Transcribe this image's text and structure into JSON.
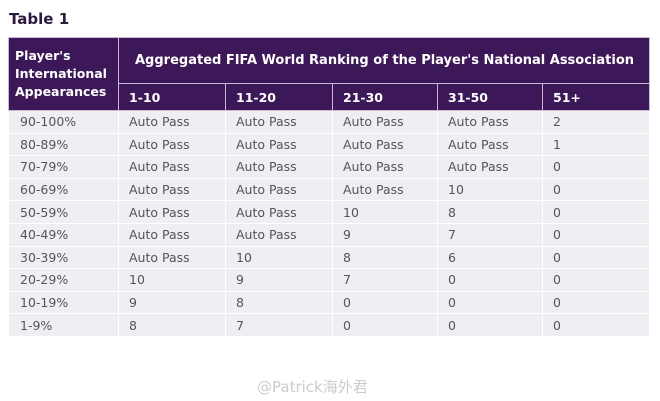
{
  "title": "Table 1",
  "header": {
    "row_label": "Player's International Appearances",
    "group": "Aggregated FIFA World Ranking of the Player's National Association",
    "columns": [
      "1-10",
      "11-20",
      "21-30",
      "31-50",
      "51+"
    ]
  },
  "rows": [
    {
      "label": "90-100%",
      "cells": [
        "Auto Pass",
        "Auto Pass",
        "Auto Pass",
        "Auto Pass",
        "2"
      ]
    },
    {
      "label": "80-89%",
      "cells": [
        "Auto Pass",
        "Auto Pass",
        "Auto Pass",
        "Auto Pass",
        "1"
      ]
    },
    {
      "label": "70-79%",
      "cells": [
        "Auto Pass",
        "Auto Pass",
        "Auto Pass",
        "Auto Pass",
        "0"
      ]
    },
    {
      "label": "60-69%",
      "cells": [
        "Auto Pass",
        "Auto Pass",
        "Auto Pass",
        "10",
        "0"
      ]
    },
    {
      "label": "50-59%",
      "cells": [
        "Auto Pass",
        "Auto Pass",
        "10",
        "8",
        "0"
      ]
    },
    {
      "label": "40-49%",
      "cells": [
        "Auto Pass",
        "Auto Pass",
        "9",
        "7",
        "0"
      ]
    },
    {
      "label": "30-39%",
      "cells": [
        "Auto Pass",
        "10",
        "8",
        "6",
        "0"
      ]
    },
    {
      "label": "20-29%",
      "cells": [
        "10",
        "9",
        "7",
        "0",
        "0"
      ]
    },
    {
      "label": "10-19%",
      "cells": [
        "9",
        "8",
        "0",
        "0",
        "0"
      ]
    },
    {
      "label": "1-9%",
      "cells": [
        "8",
        "7",
        "0",
        "0",
        "0"
      ]
    }
  ],
  "watermark": "@Patrick海外君"
}
